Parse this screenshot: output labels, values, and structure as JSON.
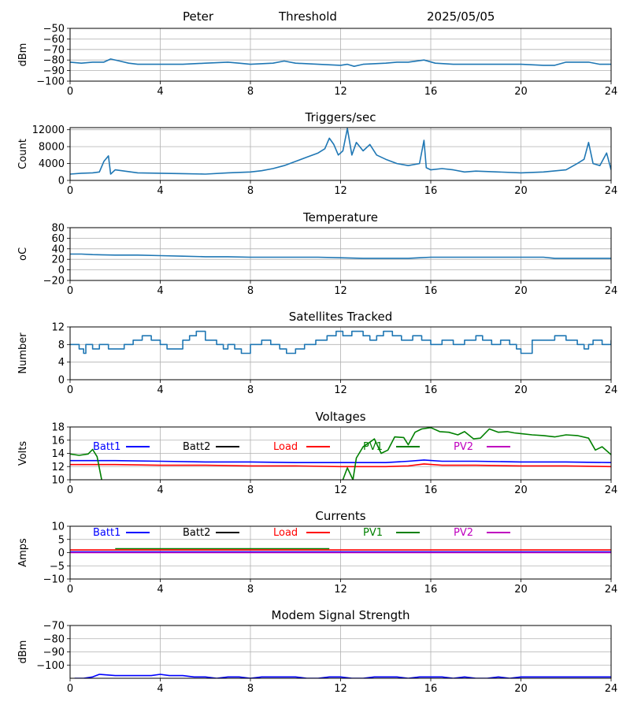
{
  "header": {
    "station": "Peter",
    "mode": "Threshold",
    "date": "2025/05/05"
  },
  "colors": {
    "default": "#1f77b4",
    "grid": "#b0b0b0",
    "batt1": "#0000ff",
    "batt2": "#000000",
    "load": "#ff0000",
    "pv1": "#008000",
    "pv2": "#bf00bf"
  },
  "chart_data": [
    {
      "type": "line",
      "title": "",
      "ylabel": "dBm",
      "ylim": [
        -100,
        -50
      ],
      "yticks": [
        -50,
        -60,
        -70,
        -80,
        -90,
        -100
      ],
      "xlim": [
        0,
        24
      ],
      "xticks": [
        0,
        4,
        8,
        12,
        16,
        20,
        24
      ],
      "grid": true,
      "series": [
        {
          "color": "#1f77b4",
          "x": [
            0,
            0.5,
            1,
            1.5,
            1.8,
            2.2,
            2.6,
            3,
            4,
            5,
            6,
            7,
            7.5,
            8,
            9,
            9.5,
            10,
            11,
            12,
            12.3,
            12.6,
            13,
            14,
            14.5,
            15,
            15.7,
            16.2,
            17,
            18,
            19,
            20,
            21,
            21.5,
            22,
            23,
            23.5,
            24
          ],
          "y": [
            -82,
            -83,
            -82,
            -82,
            -79,
            -81,
            -83,
            -84,
            -84,
            -84,
            -83,
            -82,
            -83,
            -84,
            -83,
            -81,
            -83,
            -84,
            -85,
            -84,
            -86,
            -84,
            -83,
            -82,
            -82,
            -80,
            -83,
            -84,
            -84,
            -84,
            -84,
            -85,
            -85,
            -82,
            -82,
            -84,
            -84
          ]
        }
      ]
    },
    {
      "type": "line",
      "title": "Triggers/sec",
      "ylabel": "Count",
      "ylim": [
        0,
        12500
      ],
      "yticks": [
        0,
        4000,
        8000,
        12000
      ],
      "xlim": [
        0,
        24
      ],
      "xticks": [
        0,
        4,
        8,
        12,
        16,
        20,
        24
      ],
      "grid": true,
      "series": [
        {
          "color": "#1f77b4",
          "x": [
            0,
            0.5,
            1,
            1.3,
            1.5,
            1.7,
            1.8,
            2,
            3,
            4,
            5,
            6,
            7,
            8,
            8.5,
            9,
            9.5,
            10,
            10.5,
            11,
            11.3,
            11.5,
            11.7,
            11.9,
            12.1,
            12.3,
            12.5,
            12.7,
            13,
            13.3,
            13.6,
            14,
            14.5,
            15,
            15.5,
            15.7,
            15.8,
            16,
            16.5,
            17,
            17.5,
            18,
            19,
            20,
            21,
            22,
            22.5,
            22.8,
            23,
            23.2,
            23.5,
            23.8,
            24
          ],
          "y": [
            1500,
            1700,
            1800,
            2000,
            4500,
            5800,
            1500,
            2500,
            1800,
            1700,
            1600,
            1500,
            1800,
            2000,
            2300,
            2800,
            3500,
            4500,
            5500,
            6500,
            7500,
            10000,
            8500,
            6000,
            7000,
            12300,
            6000,
            9000,
            7000,
            8500,
            6000,
            5000,
            4000,
            3500,
            4000,
            9500,
            3000,
            2500,
            2800,
            2500,
            2000,
            2200,
            2000,
            1800,
            2000,
            2500,
            4000,
            5000,
            9000,
            4000,
            3500,
            6500,
            2500
          ]
        }
      ]
    },
    {
      "type": "line",
      "title": "Temperature",
      "ylabel": "oC",
      "ylim": [
        -20,
        80
      ],
      "yticks": [
        -20,
        0,
        20,
        40,
        60,
        80
      ],
      "xlim": [
        0,
        24
      ],
      "xticks": [
        0,
        4,
        8,
        12,
        16,
        20,
        24
      ],
      "grid": true,
      "series": [
        {
          "color": "#1f77b4",
          "x": [
            0,
            0.5,
            1,
            2,
            3,
            4,
            5,
            6,
            7,
            8,
            9,
            10,
            11,
            12,
            13,
            14,
            15,
            15.5,
            16,
            18,
            20,
            21,
            21.5,
            22,
            24
          ],
          "y": [
            30,
            30,
            29,
            28,
            28,
            27,
            26,
            25,
            25,
            24,
            24,
            24,
            24,
            23,
            22,
            22,
            22,
            23,
            24,
            24,
            24,
            24,
            22,
            22,
            22
          ]
        }
      ]
    },
    {
      "type": "line",
      "title": "Satellites Tracked",
      "ylabel": "Number",
      "ylim": [
        0,
        12
      ],
      "yticks": [
        0,
        4,
        8,
        12
      ],
      "xlim": [
        0,
        24
      ],
      "xticks": [
        0,
        4,
        8,
        12,
        16,
        20,
        24
      ],
      "grid": true,
      "series": [
        {
          "color": "#1f77b4",
          "step": true,
          "x": [
            0,
            0.4,
            0.6,
            0.7,
            1,
            1.3,
            1.7,
            2.4,
            2.8,
            3.2,
            3.6,
            4,
            4.3,
            5,
            5.3,
            5.6,
            6,
            6.5,
            6.8,
            7,
            7.3,
            7.6,
            8,
            8.5,
            8.9,
            9.3,
            9.6,
            10,
            10.4,
            10.9,
            11.4,
            11.8,
            12.1,
            12.5,
            13,
            13.3,
            13.6,
            13.9,
            14.3,
            14.7,
            15.2,
            15.6,
            16,
            16.5,
            17,
            17.5,
            18,
            18.3,
            18.7,
            19.1,
            19.5,
            19.8,
            20,
            20.5,
            21.5,
            22,
            22.5,
            22.8,
            23,
            23.2,
            23.6,
            24
          ],
          "y": [
            8,
            7,
            6,
            8,
            7,
            8,
            7,
            8,
            9,
            10,
            9,
            8,
            7,
            9,
            10,
            11,
            9,
            8,
            7,
            8,
            7,
            6,
            8,
            9,
            8,
            7,
            6,
            7,
            8,
            9,
            10,
            11,
            10,
            11,
            10,
            9,
            10,
            11,
            10,
            9,
            10,
            9,
            8,
            9,
            8,
            9,
            10,
            9,
            8,
            9,
            8,
            7,
            6,
            9,
            10,
            9,
            8,
            7,
            8,
            9,
            8,
            9
          ]
        }
      ]
    },
    {
      "type": "line",
      "title": "Voltages",
      "ylabel": "Volts",
      "ylim": [
        10,
        18
      ],
      "yticks": [
        10,
        12,
        14,
        16,
        18
      ],
      "xlim": [
        0,
        24
      ],
      "xticks": [
        0,
        4,
        8,
        12,
        16,
        20,
        24
      ],
      "grid": true,
      "legend": [
        "Batt1",
        "Batt2",
        "Load",
        "PV1",
        "PV2"
      ],
      "series": [
        {
          "name": "Batt1",
          "color": "#0000ff",
          "x": [
            0,
            2,
            4,
            6,
            8,
            10,
            12,
            14,
            15,
            15.7,
            16.5,
            18,
            20,
            22,
            24
          ],
          "y": [
            12.9,
            12.9,
            12.8,
            12.7,
            12.7,
            12.6,
            12.6,
            12.6,
            12.8,
            13.0,
            12.8,
            12.8,
            12.7,
            12.7,
            12.6
          ]
        },
        {
          "name": "Load",
          "color": "#ff0000",
          "x": [
            0,
            2,
            4,
            6,
            8,
            10,
            12,
            14,
            15,
            15.7,
            16.5,
            18,
            20,
            22,
            24
          ],
          "y": [
            12.3,
            12.3,
            12.2,
            12.2,
            12.1,
            12.1,
            12.0,
            12.0,
            12.1,
            12.4,
            12.2,
            12.2,
            12.1,
            12.1,
            12.0
          ]
        },
        {
          "name": "PV1",
          "color": "#008000",
          "x": [
            0,
            0.4,
            0.8,
            1,
            1.2,
            1.4
          ],
          "y": [
            13.9,
            13.7,
            13.9,
            14.6,
            13.5,
            10
          ]
        },
        {
          "name": "PV1",
          "color": "#008000",
          "x": [
            12.1,
            12.3,
            12.55,
            12.7,
            13,
            13.3,
            13.5,
            13.8,
            14.1,
            14.4,
            14.8,
            15,
            15.3,
            15.6,
            16,
            16.4,
            16.8,
            17.2,
            17.5,
            17.9,
            18.2,
            18.6,
            19,
            19.4,
            19.7,
            20,
            20.5,
            21,
            21.5,
            22,
            22.5,
            23,
            23.3,
            23.6,
            24
          ],
          "y": [
            10,
            11.8,
            10,
            13.3,
            15.0,
            15.7,
            16.2,
            14.0,
            14.5,
            16.5,
            16.4,
            15.3,
            17.2,
            17.7,
            17.9,
            17.3,
            17.2,
            16.8,
            17.3,
            16.2,
            16.3,
            17.7,
            17.2,
            17.3,
            17.1,
            17.0,
            16.8,
            16.7,
            16.5,
            16.8,
            16.7,
            16.3,
            14.5,
            15.0,
            13.8
          ]
        }
      ]
    },
    {
      "type": "line",
      "title": "Currents",
      "ylabel": "Amps",
      "ylim": [
        -10,
        10
      ],
      "yticks": [
        -10,
        -5,
        0,
        5,
        10
      ],
      "xlim": [
        0,
        24
      ],
      "xticks": [
        0,
        4,
        8,
        12,
        16,
        20,
        24
      ],
      "grid": true,
      "legend": [
        "Batt1",
        "Batt2",
        "Load",
        "PV1",
        "PV2"
      ],
      "series": [
        {
          "name": "PV1",
          "color": "#008000",
          "x": [
            2,
            11.5
          ],
          "y": [
            1.5,
            1.5
          ]
        },
        {
          "name": "Load",
          "color": "#ff0000",
          "x": [
            0,
            24
          ],
          "y": [
            1.0,
            1.0
          ]
        },
        {
          "name": "Batt1",
          "color": "#0000ff",
          "x": [
            0,
            24
          ],
          "y": [
            0.3,
            0.3
          ]
        },
        {
          "name": "PV2",
          "color": "#bf00bf",
          "x": [
            0,
            24
          ],
          "y": [
            0,
            0
          ]
        }
      ]
    },
    {
      "type": "line",
      "title": "Modem Signal Strength",
      "ylabel": "dBm",
      "ylim": [
        -110,
        -70
      ],
      "yticks": [
        -70,
        -80,
        -90,
        -100
      ],
      "xlim": [
        0,
        24
      ],
      "xticks": [
        0,
        4,
        8,
        12,
        16,
        20,
        24
      ],
      "grid": true,
      "series": [
        {
          "color": "#0000ff",
          "x": [
            0.2,
            0.6,
            1,
            1.3,
            2,
            3,
            3.6,
            4,
            4.4,
            5,
            5.5,
            6,
            6.5,
            7,
            7.5,
            8,
            8.5,
            9,
            10,
            10.5,
            11,
            11.5,
            12,
            12.5,
            13,
            13.5,
            14,
            14.5,
            15,
            15.5,
            16,
            16.5,
            17,
            17.5,
            18,
            18.5,
            19,
            19.5,
            20,
            21,
            22,
            23,
            24
          ],
          "y": [
            -110,
            -110,
            -109,
            -107,
            -108,
            -108,
            -108,
            -107,
            -108,
            -108,
            -109,
            -109,
            -110,
            -109,
            -109,
            -110,
            -109,
            -109,
            -109,
            -110,
            -110,
            -109,
            -109,
            -110,
            -110,
            -109,
            -109,
            -109,
            -110,
            -109,
            -109,
            -109,
            -110,
            -109,
            -110,
            -110,
            -109,
            -110,
            -109,
            -109,
            -109,
            -109,
            -109
          ]
        }
      ]
    }
  ]
}
